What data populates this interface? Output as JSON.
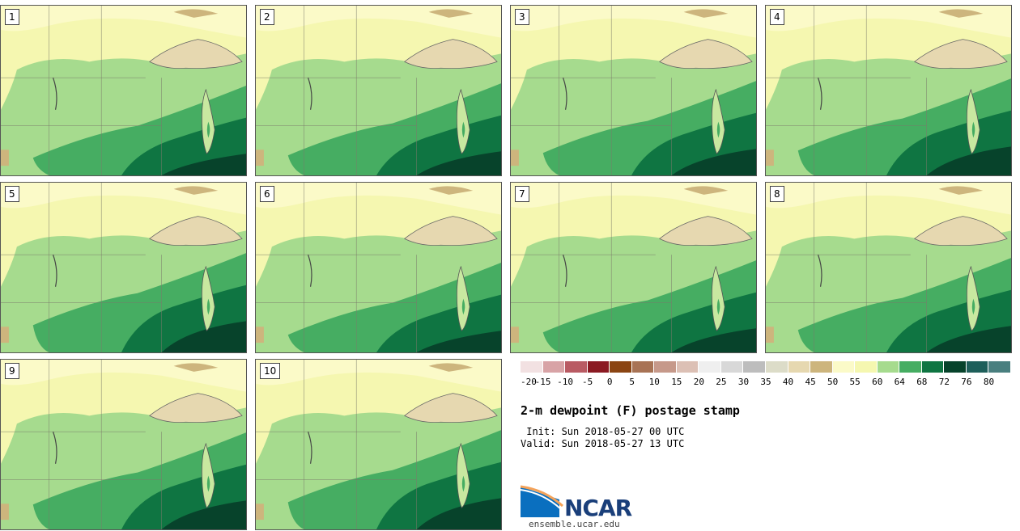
{
  "panels": [
    {
      "label": "1"
    },
    {
      "label": "2"
    },
    {
      "label": "3"
    },
    {
      "label": "4"
    },
    {
      "label": "5"
    },
    {
      "label": "6"
    },
    {
      "label": "7"
    },
    {
      "label": "8"
    },
    {
      "label": "9"
    },
    {
      "label": "10"
    }
  ],
  "colorbar": {
    "colors": [
      "#f2e1e2",
      "#d8a3a6",
      "#b95b63",
      "#8b1a22",
      "#8b4513",
      "#a87355",
      "#c6998a",
      "#dcc0b5",
      "#efefef",
      "#d8d8d8",
      "#bdbdbd",
      "#dcdcc8",
      "#e6d8b0",
      "#cdb57d",
      "#fbfac8",
      "#f5f7b0",
      "#a6db8e",
      "#46ad62",
      "#0f7542",
      "#07432b",
      "#1e5f5a",
      "#4a7f7f"
    ],
    "ticks": [
      "-20",
      "-15",
      "-10",
      "-5",
      "0",
      "5",
      "10",
      "15",
      "20",
      "25",
      "30",
      "35",
      "40",
      "45",
      "50",
      "55",
      "60",
      "64",
      "68",
      "72",
      "76",
      "80"
    ]
  },
  "title": "2-m dewpoint (F) postage stamp",
  "init": " Init: Sun 2018-05-27 00 UTC",
  "valid": "Valid: Sun 2018-05-27 13 UTC",
  "logo": {
    "text": "NCAR"
  },
  "footer": "ensemble.ucar.edu"
}
